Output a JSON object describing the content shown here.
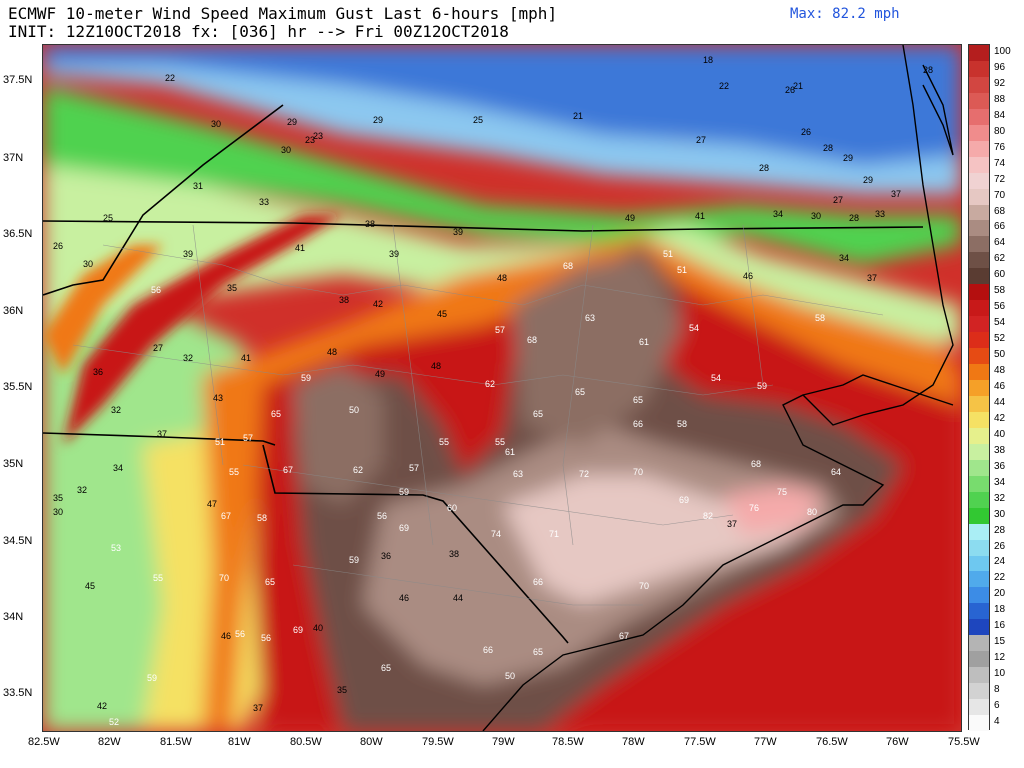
{
  "header": {
    "title_line1": "ECMWF 10-meter Wind Speed Maximum Gust Last 6-hours [mph]",
    "title_line2": "INIT: 12Z10OCT2018 fx: [036] hr --> Fri 00Z12OCT2018",
    "max_label": "Max: 82.2 mph"
  },
  "axes": {
    "lat_labels": [
      "37.5N",
      "37N",
      "36.5N",
      "36N",
      "35.5N",
      "35N",
      "34.5N",
      "34N",
      "33.5N"
    ],
    "lon_labels": [
      "82.5W",
      "82W",
      "81.5W",
      "81W",
      "80.5W",
      "80W",
      "79.5W",
      "79W",
      "78.5W",
      "78W",
      "77.5W",
      "77W",
      "76.5W",
      "76W",
      "75.5W"
    ]
  },
  "colorbar": {
    "levels": [
      100,
      96,
      92,
      88,
      84,
      80,
      76,
      74,
      72,
      70,
      68,
      66,
      64,
      62,
      60,
      58,
      56,
      54,
      52,
      50,
      48,
      46,
      44,
      42,
      40,
      38,
      36,
      34,
      32,
      30,
      28,
      26,
      24,
      22,
      20,
      18,
      16,
      15,
      12,
      10,
      8,
      6,
      4
    ],
    "colors": [
      "#b41e1e",
      "#c8322d",
      "#d24641",
      "#dc5a55",
      "#e66e6e",
      "#f08c8c",
      "#f5aaaa",
      "#f5c3c3",
      "#f0d2d2",
      "#e6c8c3",
      "#c8aaa0",
      "#aa8c82",
      "#8c6e64",
      "#6e5046",
      "#5a3c32",
      "#b40f0f",
      "#c81919",
      "#d22323",
      "#dc2d19",
      "#e64b14",
      "#f07814",
      "#f5a028",
      "#f5c346",
      "#f5e164",
      "#e6f08c",
      "#c8f0a0",
      "#a0e68c",
      "#78dc6e",
      "#50d250",
      "#32c832",
      "#aaeef5",
      "#8cdcf0",
      "#6ec8f0",
      "#50aaeb",
      "#3c8ce6",
      "#2864d2",
      "#1e46be",
      "#b4b4b4",
      "#a0a0a0",
      "#bebebe",
      "#d2d2d2",
      "#e6e6e6",
      "#fafafa"
    ]
  },
  "wind_labels": [
    {
      "v": "22"
    },
    {
      "v": "30"
    },
    {
      "v": "29"
    },
    {
      "v": "23"
    },
    {
      "v": "29"
    },
    {
      "v": "25"
    },
    {
      "v": "21"
    },
    {
      "v": "18"
    },
    {
      "v": "22"
    },
    {
      "v": "26"
    },
    {
      "v": "21"
    },
    {
      "v": "28"
    },
    {
      "v": "30"
    },
    {
      "v": "23"
    },
    {
      "v": "27"
    },
    {
      "v": "26"
    },
    {
      "v": "28"
    },
    {
      "v": "29"
    },
    {
      "v": "28"
    },
    {
      "v": "31"
    },
    {
      "v": "33"
    },
    {
      "v": "25"
    },
    {
      "v": "38"
    },
    {
      "v": "39"
    },
    {
      "v": "49"
    },
    {
      "v": "41"
    },
    {
      "v": "34"
    },
    {
      "v": "30"
    },
    {
      "v": "28"
    },
    {
      "v": "33"
    },
    {
      "v": "27"
    },
    {
      "v": "29"
    },
    {
      "v": "37"
    },
    {
      "v": "26"
    },
    {
      "v": "30"
    },
    {
      "v": "39"
    },
    {
      "v": "41"
    },
    {
      "v": "39"
    },
    {
      "v": "68"
    },
    {
      "v": "51"
    },
    {
      "v": "51"
    },
    {
      "v": "46"
    },
    {
      "v": "34"
    },
    {
      "v": "37"
    },
    {
      "v": "35"
    },
    {
      "v": "56"
    },
    {
      "v": "38"
    },
    {
      "v": "42"
    },
    {
      "v": "48"
    },
    {
      "v": "45"
    },
    {
      "v": "63"
    },
    {
      "v": "54"
    },
    {
      "v": "58"
    },
    {
      "v": "27"
    },
    {
      "v": "32"
    },
    {
      "v": "41"
    },
    {
      "v": "48"
    },
    {
      "v": "49"
    },
    {
      "v": "48"
    },
    {
      "v": "57"
    },
    {
      "v": "68"
    },
    {
      "v": "61"
    },
    {
      "v": "54"
    },
    {
      "v": "36"
    },
    {
      "v": "43"
    },
    {
      "v": "62"
    },
    {
      "v": "65"
    },
    {
      "v": "59"
    },
    {
      "v": "59"
    },
    {
      "v": "32"
    },
    {
      "v": "65"
    },
    {
      "v": "50"
    },
    {
      "v": "65"
    },
    {
      "v": "65"
    },
    {
      "v": "66"
    },
    {
      "v": "58"
    },
    {
      "v": "37"
    },
    {
      "v": "51"
    },
    {
      "v": "57"
    },
    {
      "v": "55"
    },
    {
      "v": "55"
    },
    {
      "v": "61"
    },
    {
      "v": "68"
    },
    {
      "v": "64"
    },
    {
      "v": "34"
    },
    {
      "v": "55"
    },
    {
      "v": "67"
    },
    {
      "v": "62"
    },
    {
      "v": "57"
    },
    {
      "v": "63"
    },
    {
      "v": "72"
    },
    {
      "v": "70"
    },
    {
      "v": "32"
    },
    {
      "v": "35"
    },
    {
      "v": "30"
    },
    {
      "v": "47"
    },
    {
      "v": "59"
    },
    {
      "v": "60"
    },
    {
      "v": "69"
    },
    {
      "v": "75"
    },
    {
      "v": "76"
    },
    {
      "v": "80"
    },
    {
      "v": "58"
    },
    {
      "v": "56"
    },
    {
      "v": "69"
    },
    {
      "v": "74"
    },
    {
      "v": "71"
    },
    {
      "v": "82"
    },
    {
      "v": "37"
    },
    {
      "v": "53"
    },
    {
      "v": "67"
    },
    {
      "v": "59"
    },
    {
      "v": "36"
    },
    {
      "v": "38"
    },
    {
      "v": "45"
    },
    {
      "v": "55"
    },
    {
      "v": "70"
    },
    {
      "v": "65"
    },
    {
      "v": "66"
    },
    {
      "v": "70"
    },
    {
      "v": "46"
    },
    {
      "v": "44"
    },
    {
      "v": "46"
    },
    {
      "v": "56"
    },
    {
      "v": "56"
    },
    {
      "v": "69"
    },
    {
      "v": "40"
    },
    {
      "v": "67"
    },
    {
      "v": "59"
    },
    {
      "v": "65"
    },
    {
      "v": "66"
    },
    {
      "v": "65"
    },
    {
      "v": "50"
    },
    {
      "v": "35"
    },
    {
      "v": "37"
    },
    {
      "v": "42"
    },
    {
      "v": "52"
    }
  ]
}
